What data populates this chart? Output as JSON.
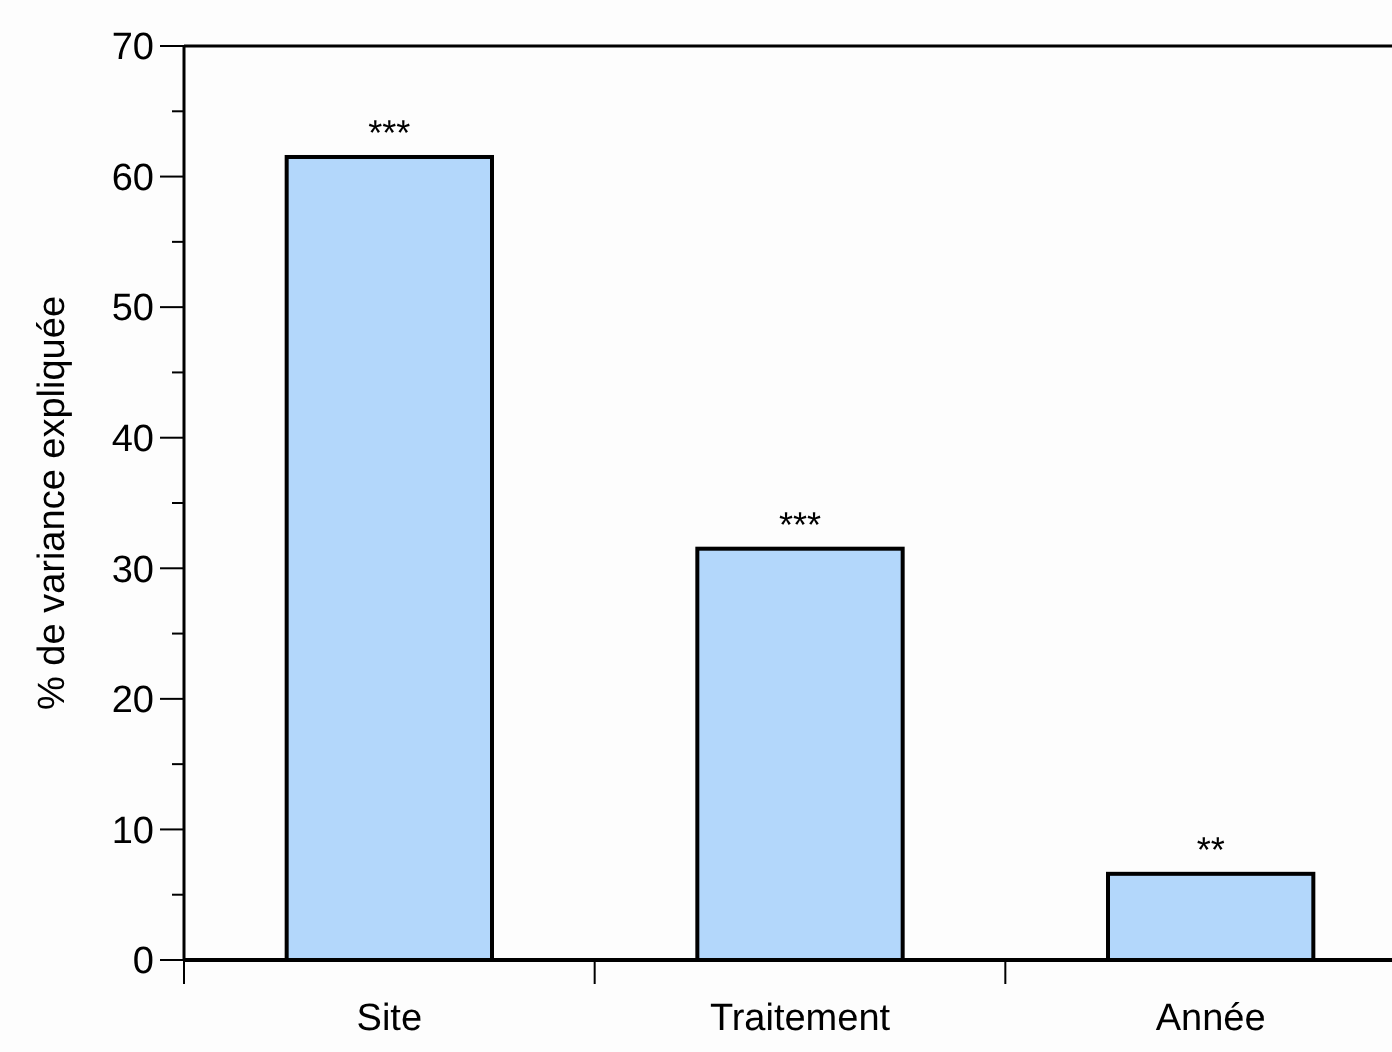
{
  "chart_data": {
    "type": "bar",
    "ylabel": "% de variance expliquée",
    "categories": [
      "Site",
      "Traitement",
      "Année"
    ],
    "values": [
      61.5,
      31.5,
      6.6
    ],
    "color": "#b3d7fb",
    "ylim": [
      0,
      70
    ],
    "yticks": [
      0,
      {
        "value": 5,
        "label": null
      },
      10,
      {
        "value": 15,
        "label": null
      },
      20,
      {
        "value": 25,
        "label": null
      },
      30,
      {
        "value": 35,
        "label": null
      },
      40,
      {
        "value": 45,
        "label": null
      },
      50,
      {
        "value": 55,
        "label": null
      },
      60,
      {
        "value": 65,
        "label": null
      },
      70
    ],
    "grid": false,
    "annotations": [
      {
        "text": "***",
        "x": "Site",
        "y": 61.5
      },
      {
        "text": "***",
        "x": "Traitement",
        "y": 31.5
      },
      {
        "text": "**",
        "x": "Année",
        "y": 6.6
      }
    ]
  }
}
